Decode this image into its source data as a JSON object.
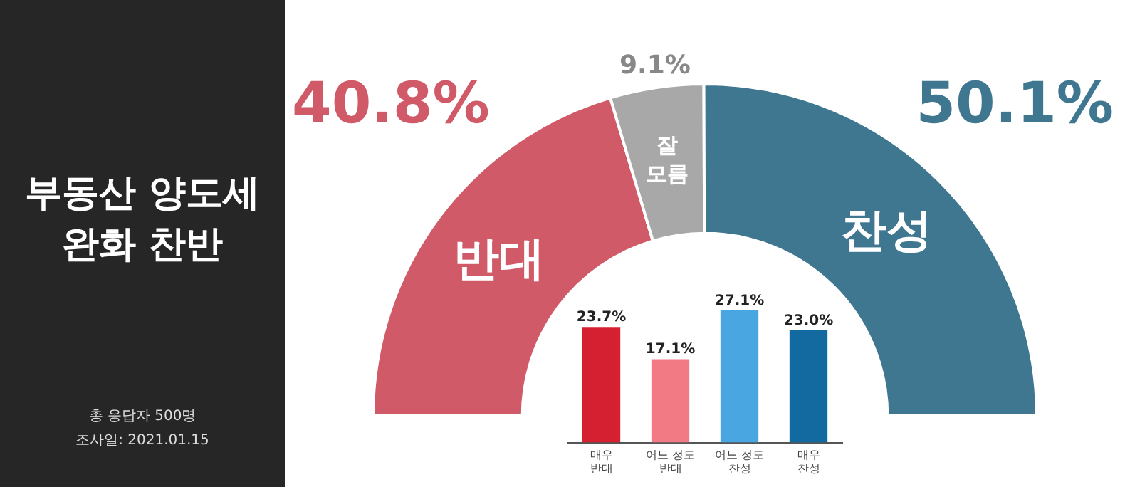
{
  "chart_data": [
    {
      "type": "donut",
      "title": "부동산 양도세 완화 찬반",
      "categories": [
        "반대",
        "잘 모름",
        "찬성"
      ],
      "values": [
        40.8,
        9.1,
        50.1
      ],
      "colors": [
        "#d05a68",
        "#a8a8a8",
        "#3f7690"
      ],
      "value_labels": [
        "40.8%",
        "9.1%",
        "50.1%"
      ],
      "legend": false,
      "annotations": [
        "총 응답자 500명",
        "조사일: 2021.01.15"
      ]
    },
    {
      "type": "bar",
      "categories": [
        "매우 반대",
        "어느 정도 반대",
        "어느 정도 찬성",
        "매우 찬성"
      ],
      "values": [
        23.7,
        17.1,
        27.1,
        23.0
      ],
      "colors": [
        "#d42030",
        "#f27a84",
        "#4aa6e0",
        "#136aa0"
      ],
      "value_labels": [
        "23.7%",
        "17.1%",
        "27.1%",
        "23.0%"
      ],
      "legend": false
    }
  ]
}
